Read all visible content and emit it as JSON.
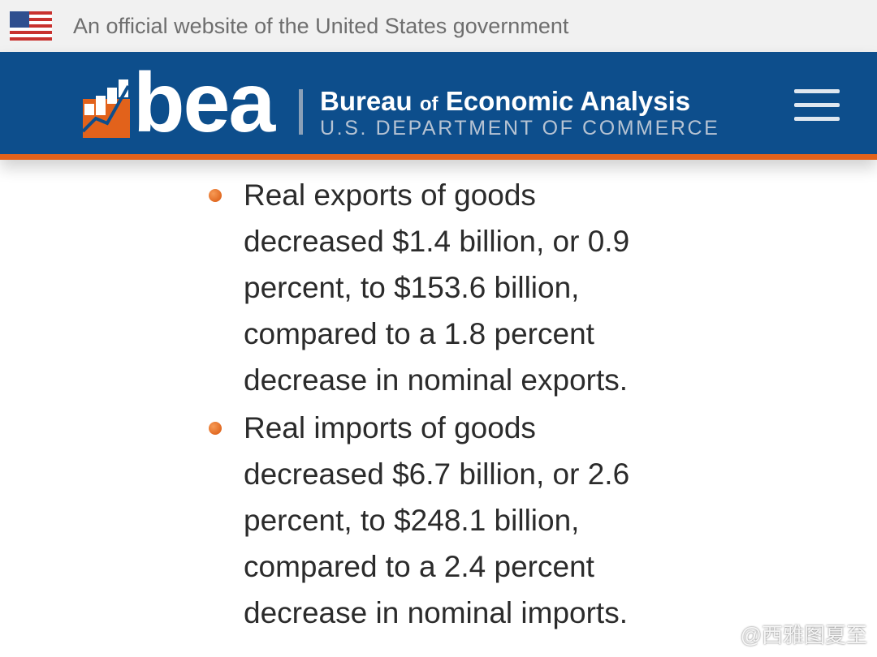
{
  "gov_banner": {
    "text": "An official website of the United States government"
  },
  "header": {
    "logo_text": "bea",
    "title_words": [
      "Bureau",
      "of",
      "Economic Analysis"
    ],
    "subtitle": "U.S. DEPARTMENT OF COMMERCE"
  },
  "content": {
    "bullets": [
      "Real exports of goods decreased $1.4 billion, or 0.9 percent, to $153.6 billion, compared to a 1.8 percent decrease in nominal exports.",
      "Real imports of goods decreased $6.7 billion, or 2.6 percent, to $248.1 billion, compared to a 2.4 percent decrease in nominal imports."
    ]
  },
  "watermark": "@西雅图夏至"
}
